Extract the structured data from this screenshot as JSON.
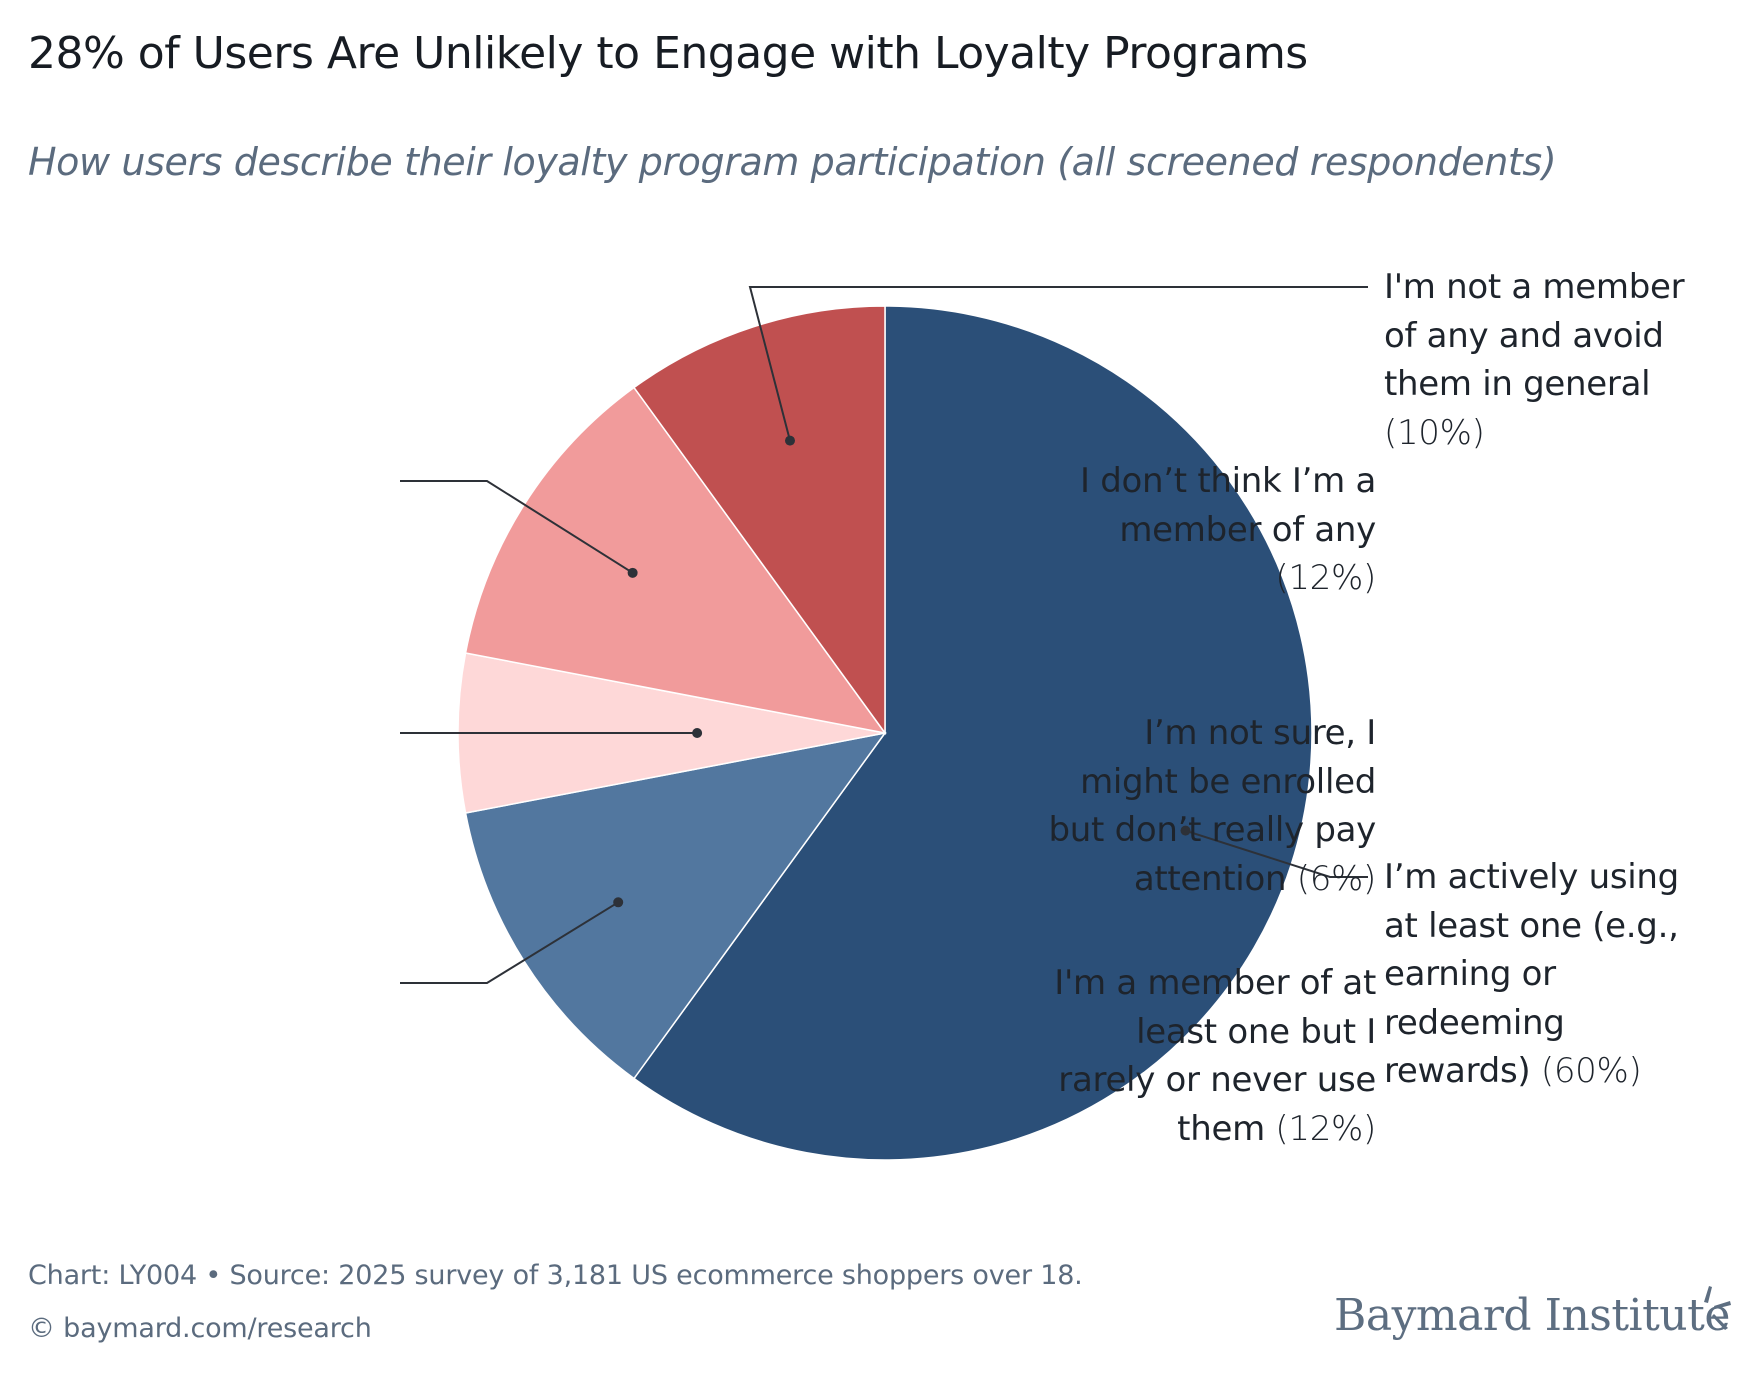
{
  "chart_data": {
    "type": "pie",
    "title": "28% of Users Are Unlikely to Engage with Loyalty Programs",
    "subtitle": "How users describe their loyalty program participation (all screened respondents)",
    "start": "top",
    "direction": "clockwise",
    "slices": [
      {
        "label": "I’m actively using at least one (e.g., earning or redeeming rewards)",
        "value": 60,
        "value_label": "(60%)",
        "color": "#2b4f78",
        "side": "right",
        "label_lines": [
          "I’m actively using",
          "at least one (e.g.,",
          "earning or",
          "redeeming",
          "rewards)"
        ]
      },
      {
        "label": "I'm a member of at least one but I rarely or never use them",
        "value": 12,
        "value_label": "(12%)",
        "color": "#52779f",
        "side": "left",
        "label_lines": [
          "I'm a member of at",
          "least one but I",
          "rarely or never use",
          "them"
        ]
      },
      {
        "label": "I’m not sure, I might be enrolled but don’t really pay attention",
        "value": 6,
        "value_label": "(6%)",
        "color": "#fed8d8",
        "side": "left",
        "label_lines": [
          "I’m not sure, I",
          "might be enrolled",
          "but don’t really pay",
          "attention"
        ]
      },
      {
        "label": "I don’t think I’m a member of any",
        "value": 12,
        "value_label": "(12%)",
        "color": "#f19b9b",
        "side": "left",
        "label_lines": [
          "I don’t think I’m a",
          "member of any",
          ""
        ]
      },
      {
        "label": "I'm not a member of any and avoid them in general",
        "value": 10,
        "value_label": "(10%)",
        "color": "#c05050",
        "side": "right",
        "label_lines": [
          "I'm not a member",
          "of any and avoid",
          "them in general",
          ""
        ]
      }
    ]
  },
  "footer": {
    "source": "Chart: LY004 • Source: 2025 survey of 3,181 US ecommerce shoppers over 18.",
    "copyright": "© baymard.com/research"
  },
  "brand": {
    "name": "Baymard Institute",
    "logo_icon": "baymard-burst-icon"
  },
  "colors": {
    "callout_line": "#2d3138",
    "slice_separator": "#ffffff"
  }
}
